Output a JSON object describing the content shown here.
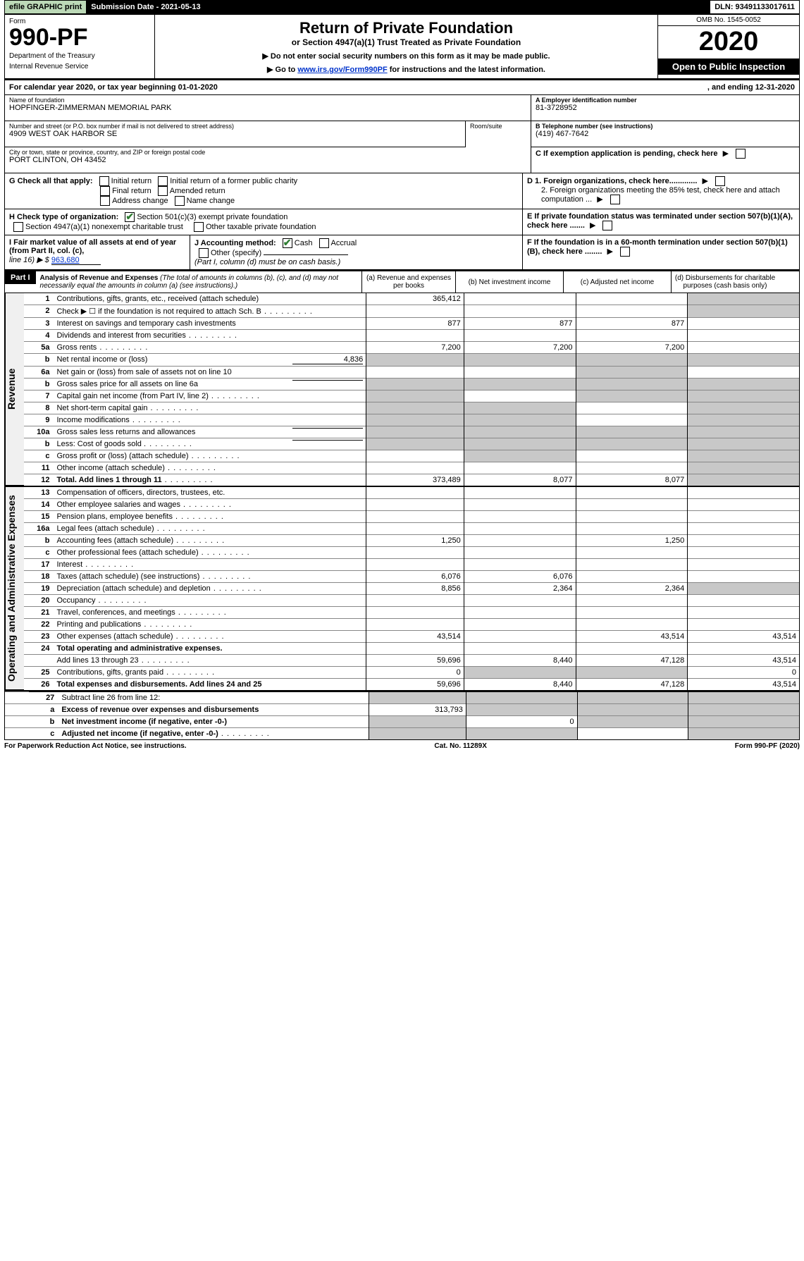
{
  "topbar": {
    "efile": "efile GRAPHIC print",
    "subdate": "Submission Date - 2021-05-13",
    "dln": "DLN: 93491133017611"
  },
  "header": {
    "form_word": "Form",
    "form_no": "990-PF",
    "dept": "Department of the Treasury",
    "irs": "Internal Revenue Service",
    "title": "Return of Private Foundation",
    "subtitle": "or Section 4947(a)(1) Trust Treated as Private Foundation",
    "note1": "▶ Do not enter social security numbers on this form as it may be made public.",
    "note2_pre": "▶ Go to ",
    "note2_link": "www.irs.gov/Form990PF",
    "note2_post": " for instructions and the latest information.",
    "omb": "OMB No. 1545-0052",
    "year": "2020",
    "open": "Open to Public Inspection"
  },
  "cal": {
    "left": "For calendar year 2020, or tax year beginning 01-01-2020",
    "right": ", and ending 12-31-2020"
  },
  "id": {
    "name_lbl": "Name of foundation",
    "name": "HOPFINGER-ZIMMERMAN MEMORIAL PARK",
    "addr_lbl": "Number and street (or P.O. box number if mail is not delivered to street address)",
    "addr": "4909 WEST OAK HARBOR SE",
    "room_lbl": "Room/suite",
    "city_lbl": "City or town, state or province, country, and ZIP or foreign postal code",
    "city": "PORT CLINTON, OH  43452",
    "ein_lbl": "A Employer identification number",
    "ein": "81-3728952",
    "tel_lbl": "B Telephone number (see instructions)",
    "tel": "(419) 467-7642",
    "c_lbl": "C If exemption application is pending, check here",
    "d1": "D 1. Foreign organizations, check here.............",
    "d2": "2. Foreign organizations meeting the 85% test, check here and attach computation ...",
    "e": "E  If private foundation status was terminated under section 507(b)(1)(A), check here .......",
    "f": "F  If the foundation is in a 60-month termination under section 507(b)(1)(B), check here ........"
  },
  "g": {
    "lbl": "G Check all that apply:",
    "opts": [
      "Initial return",
      "Initial return of a former public charity",
      "Final return",
      "Amended return",
      "Address change",
      "Name change"
    ]
  },
  "h": {
    "lbl": "H Check type of organization:",
    "o1": "Section 501(c)(3) exempt private foundation",
    "o2": "Section 4947(a)(1) nonexempt charitable trust",
    "o3": "Other taxable private foundation"
  },
  "i": {
    "lbl": "I Fair market value of all assets at end of year (from Part II, col. (c),",
    "line": "line 16) ▶ $",
    "val": "963,680"
  },
  "j": {
    "lbl": "J Accounting method:",
    "cash": "Cash",
    "accr": "Accrual",
    "other": "Other (specify)",
    "note": "(Part I, column (d) must be on cash basis.)"
  },
  "part1": {
    "label": "Part I",
    "heading": "Analysis of Revenue and Expenses",
    "heading_note": "(The total of amounts in columns (b), (c), and (d) may not necessarily equal the amounts in column (a) (see instructions).)",
    "cols": {
      "a": "(a)   Revenue and expenses per books",
      "b": "(b)  Net investment income",
      "c": "(c)  Adjusted net income",
      "d": "(d)  Disbursements for charitable purposes (cash basis only)"
    }
  },
  "rev_label": "Revenue",
  "exp_label": "Operating and Administrative Expenses",
  "rows": {
    "1": {
      "no": "1",
      "desc": "Contributions, gifts, grants, etc., received (attach schedule)",
      "a": "365,412",
      "d_grey": true
    },
    "2": {
      "no": "2",
      "desc": "Check ▶ ☐ if the foundation is not required to attach Sch. B",
      "dots": true,
      "d_grey": true
    },
    "3": {
      "no": "3",
      "desc": "Interest on savings and temporary cash investments",
      "a": "877",
      "b": "877",
      "c": "877"
    },
    "4": {
      "no": "4",
      "desc": "Dividends and interest from securities",
      "dots": true
    },
    "5a": {
      "no": "5a",
      "desc": "Gross rents",
      "dots": true,
      "a": "7,200",
      "b": "7,200",
      "c": "7,200"
    },
    "5b": {
      "no": "b",
      "desc": "Net rental income or (loss)",
      "inline": "4,836",
      "a_grey": true,
      "b_grey": true,
      "c_grey": true,
      "d_grey": true
    },
    "6a": {
      "no": "6a",
      "desc": "Net gain or (loss) from sale of assets not on line 10",
      "c_grey": true
    },
    "6b": {
      "no": "b",
      "desc": "Gross sales price for all assets on line 6a",
      "underline": true,
      "a_grey": true,
      "b_grey": true,
      "c_grey": true,
      "d_grey": true
    },
    "7": {
      "no": "7",
      "desc": "Capital gain net income (from Part IV, line 2)",
      "dots": true,
      "a_grey": true,
      "c_grey": true,
      "d_grey": true
    },
    "8": {
      "no": "8",
      "desc": "Net short-term capital gain",
      "dots": true,
      "a_grey": true,
      "b_grey": true,
      "d_grey": true
    },
    "9": {
      "no": "9",
      "desc": "Income modifications",
      "dots": true,
      "a_grey": true,
      "b_grey": true,
      "d_grey": true
    },
    "10a": {
      "no": "10a",
      "desc": "Gross sales less returns and allowances",
      "underline": true,
      "a_grey": true,
      "b_grey": true,
      "c_grey": true,
      "d_grey": true
    },
    "10b": {
      "no": "b",
      "desc": "Less: Cost of goods sold",
      "dots": true,
      "underline": true,
      "a_grey": true,
      "b_grey": true,
      "c_grey": true,
      "d_grey": true
    },
    "10c": {
      "no": "c",
      "desc": "Gross profit or (loss) (attach schedule)",
      "dots": true,
      "b_grey": true,
      "d_grey": true
    },
    "11": {
      "no": "11",
      "desc": "Other income (attach schedule)",
      "dots": true,
      "d_grey": true
    },
    "12": {
      "no": "12",
      "desc": "Total. Add lines 1 through 11",
      "dots": true,
      "bold": true,
      "a": "373,489",
      "b": "8,077",
      "c": "8,077",
      "d_grey": true
    },
    "13": {
      "no": "13",
      "desc": "Compensation of officers, directors, trustees, etc."
    },
    "14": {
      "no": "14",
      "desc": "Other employee salaries and wages",
      "dots": true
    },
    "15": {
      "no": "15",
      "desc": "Pension plans, employee benefits",
      "dots": true
    },
    "16a": {
      "no": "16a",
      "desc": "Legal fees (attach schedule)",
      "dots": true
    },
    "16b": {
      "no": "b",
      "desc": "Accounting fees (attach schedule)",
      "dots": true,
      "a": "1,250",
      "c": "1,250"
    },
    "16c": {
      "no": "c",
      "desc": "Other professional fees (attach schedule)",
      "dots": true
    },
    "17": {
      "no": "17",
      "desc": "Interest",
      "dots": true
    },
    "18": {
      "no": "18",
      "desc": "Taxes (attach schedule) (see instructions)",
      "dots": true,
      "a": "6,076",
      "b": "6,076"
    },
    "19": {
      "no": "19",
      "desc": "Depreciation (attach schedule) and depletion",
      "dots": true,
      "a": "8,856",
      "b": "2,364",
      "c": "2,364",
      "d_grey": true
    },
    "20": {
      "no": "20",
      "desc": "Occupancy",
      "dots": true
    },
    "21": {
      "no": "21",
      "desc": "Travel, conferences, and meetings",
      "dots": true
    },
    "22": {
      "no": "22",
      "desc": "Printing and publications",
      "dots": true
    },
    "23": {
      "no": "23",
      "desc": "Other expenses (attach schedule)",
      "dots": true,
      "a": "43,514",
      "c": "43,514",
      "d": "43,514"
    },
    "24": {
      "no": "24",
      "desc": "Total operating and administrative expenses.",
      "bold": true
    },
    "24s": {
      "no": "",
      "desc": "Add lines 13 through 23",
      "dots": true,
      "a": "59,696",
      "b": "8,440",
      "c": "47,128",
      "d": "43,514"
    },
    "25": {
      "no": "25",
      "desc": "Contributions, gifts, grants paid",
      "dots": true,
      "a": "0",
      "b_grey": true,
      "c_grey": true,
      "d": "0"
    },
    "26": {
      "no": "26",
      "desc": "Total expenses and disbursements. Add lines 24 and 25",
      "bold": true,
      "a": "59,696",
      "b": "8,440",
      "c": "47,128",
      "d": "43,514"
    },
    "27": {
      "no": "27",
      "desc": "Subtract line 26 from line 12:",
      "a_grey": true,
      "b_grey": true,
      "c_grey": true,
      "d_grey": true
    },
    "27a": {
      "no": "a",
      "desc": "Excess of revenue over expenses and disbursements",
      "bold": true,
      "a": "313,793",
      "b_grey": true,
      "c_grey": true,
      "d_grey": true
    },
    "27b": {
      "no": "b",
      "desc": "Net investment income (if negative, enter -0-)",
      "bold": true,
      "a_grey": true,
      "b": "0",
      "c_grey": true,
      "d_grey": true
    },
    "27c": {
      "no": "c",
      "desc": "Adjusted net income (if negative, enter -0-)",
      "bold": true,
      "dots": true,
      "a_grey": true,
      "b_grey": true,
      "d_grey": true
    }
  },
  "footer": {
    "left": "For Paperwork Reduction Act Notice, see instructions.",
    "mid": "Cat. No. 11289X",
    "right": "Form 990-PF (2020)"
  }
}
